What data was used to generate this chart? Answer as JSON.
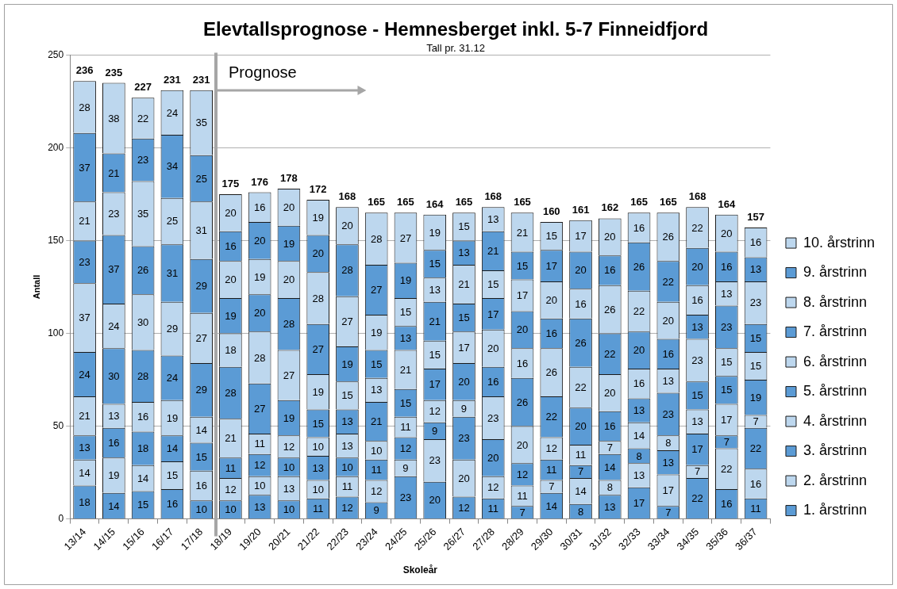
{
  "chart_data": {
    "type": "bar",
    "title": "Elevtallsprognose - Hemnesberget inkl. 5-7 Finneidfjord",
    "subtitle": "Tall pr. 31.12",
    "xlabel": "Skoleår",
    "ylabel": "Antall",
    "categories": [
      "13/14",
      "14/15",
      "15/16",
      "16/17",
      "17/18",
      "18/19",
      "19/20",
      "20/21",
      "21/22",
      "22/23",
      "23/24",
      "24/25",
      "25/26",
      "26/27",
      "27/28",
      "28/29",
      "29/30",
      "30/31",
      "31/32",
      "32/33",
      "33/34",
      "34/35",
      "35/36",
      "36/37"
    ],
    "series": [
      {
        "name": "1. årstrinn",
        "color": "#5b9bd5",
        "values": [
          18,
          14,
          15,
          16,
          10,
          10,
          13,
          10,
          11,
          12,
          9,
          23,
          20,
          12,
          11,
          7,
          14,
          8,
          13,
          17,
          7,
          22,
          16,
          11
        ]
      },
      {
        "name": "2. årstrinn",
        "color": "#bdd7ee",
        "values": [
          14,
          19,
          14,
          15,
          16,
          12,
          10,
          13,
          10,
          11,
          12,
          9,
          23,
          20,
          12,
          11,
          7,
          14,
          8,
          13,
          17,
          7,
          22,
          16
        ]
      },
      {
        "name": "3. årstrinn",
        "color": "#5b9bd5",
        "values": [
          13,
          16,
          18,
          14,
          15,
          11,
          12,
          10,
          13,
          10,
          11,
          12,
          9,
          23,
          20,
          12,
          11,
          7,
          14,
          8,
          13,
          17,
          7,
          22
        ]
      },
      {
        "name": "4. årstrinn",
        "color": "#bdd7ee",
        "values": [
          21,
          13,
          16,
          19,
          14,
          21,
          11,
          12,
          10,
          13,
          10,
          11,
          12,
          9,
          23,
          20,
          12,
          11,
          7,
          14,
          8,
          13,
          17,
          7
        ]
      },
      {
        "name": "5. årstrinn",
        "color": "#5b9bd5",
        "values": [
          24,
          30,
          28,
          24,
          29,
          28,
          27,
          19,
          15,
          13,
          21,
          15,
          17,
          20,
          16,
          26,
          22,
          20,
          16,
          13,
          23,
          15,
          15,
          19
        ]
      },
      {
        "name": "6. årstrinn",
        "color": "#bdd7ee",
        "values": [
          37,
          24,
          30,
          29,
          27,
          18,
          28,
          27,
          19,
          15,
          13,
          21,
          15,
          17,
          20,
          16,
          26,
          22,
          20,
          16,
          13,
          23,
          15,
          15
        ]
      },
      {
        "name": "7. årstrinn",
        "color": "#5b9bd5",
        "values": [
          23,
          37,
          26,
          31,
          29,
          19,
          20,
          28,
          27,
          19,
          15,
          13,
          21,
          15,
          17,
          20,
          16,
          26,
          22,
          20,
          16,
          13,
          23,
          15
        ]
      },
      {
        "name": "8. årstrinn",
        "color": "#bdd7ee",
        "values": [
          21,
          23,
          35,
          25,
          31,
          20,
          19,
          20,
          28,
          27,
          19,
          15,
          13,
          21,
          15,
          17,
          20,
          16,
          26,
          22,
          20,
          16,
          13,
          23
        ]
      },
      {
        "name": "9. årstrinn",
        "color": "#5b9bd5",
        "values": [
          37,
          21,
          23,
          34,
          25,
          16,
          20,
          19,
          20,
          28,
          27,
          19,
          15,
          13,
          21,
          15,
          17,
          20,
          16,
          26,
          22,
          20,
          16,
          13
        ]
      },
      {
        "name": "10. årstrinn",
        "color": "#bdd7ee",
        "values": [
          28,
          38,
          22,
          24,
          35,
          20,
          16,
          20,
          19,
          20,
          28,
          27,
          19,
          15,
          13,
          21,
          15,
          17,
          20,
          16,
          26,
          22,
          20,
          16
        ]
      }
    ],
    "totals": [
      "236",
      "235",
      "227",
      "231",
      "231",
      "175",
      "176",
      "178",
      "172",
      "168",
      "165",
      "165",
      "164",
      "165",
      "168",
      "165",
      "160",
      "161",
      "162",
      "165",
      "165",
      "168",
      "164",
      "157"
    ],
    "stacked": true,
    "data_labels": true,
    "ylim": [
      0,
      250
    ],
    "yticks": [
      0,
      50,
      100,
      150,
      200,
      250
    ],
    "grid": "y",
    "legend": "right",
    "ref_lines": [
      {
        "axis": "x",
        "value": "18/19",
        "label": "Prognose",
        "color": "#a6a6a6"
      }
    ]
  }
}
